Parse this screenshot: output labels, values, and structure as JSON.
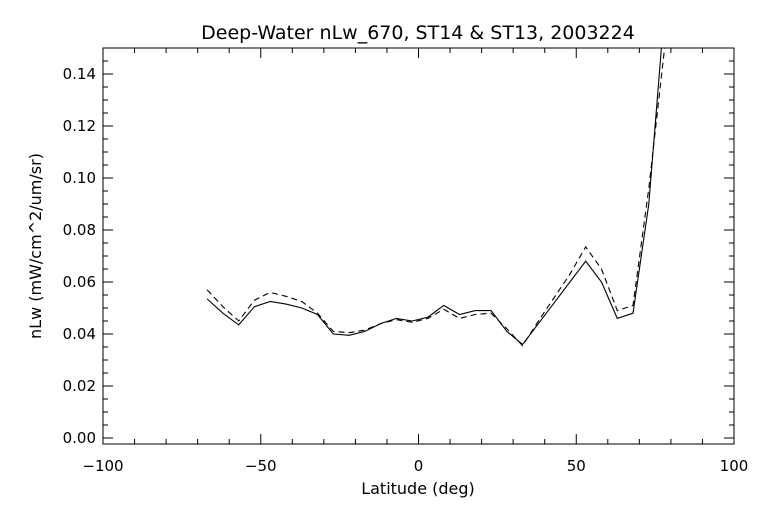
{
  "chart_data": {
    "type": "line",
    "title": "Deep-Water nLw_670, ST14 & ST13, 2003224",
    "xlabel": "Latitude (deg)",
    "ylabel": "nLw (mW/cm^2/um/sr)",
    "xlim": [
      -100,
      100
    ],
    "ylim": [
      0.0,
      0.15
    ],
    "x_ticks": [
      -100,
      -50,
      0,
      50,
      100
    ],
    "y_ticks": [
      0.0,
      0.02,
      0.04,
      0.06,
      0.08,
      0.1,
      0.12,
      0.14
    ],
    "x_tick_labels": [
      "−100",
      "−50",
      "0",
      "50",
      "100"
    ],
    "y_tick_labels": [
      "0.00",
      "0.02",
      "0.04",
      "0.06",
      "0.08",
      "0.10",
      "0.12",
      "0.14"
    ],
    "grid": false,
    "legend": "none",
    "series": [
      {
        "style": "solid",
        "points": [
          [
            -67,
            0.0535
          ],
          [
            -62,
            0.048
          ],
          [
            -57,
            0.0435
          ],
          [
            -52,
            0.0505
          ],
          [
            -47,
            0.0525
          ],
          [
            -42,
            0.0515
          ],
          [
            -37,
            0.05
          ],
          [
            -32,
            0.0475
          ],
          [
            -27,
            0.04
          ],
          [
            -22,
            0.0395
          ],
          [
            -17,
            0.041
          ],
          [
            -12,
            0.044
          ],
          [
            -7,
            0.046
          ],
          [
            -2,
            0.045
          ],
          [
            3,
            0.0465
          ],
          [
            8,
            0.051
          ],
          [
            13,
            0.0475
          ],
          [
            18,
            0.049
          ],
          [
            23,
            0.049
          ],
          [
            28,
            0.041
          ],
          [
            33,
            0.036
          ],
          [
            38,
            0.044
          ],
          [
            43,
            0.052
          ],
          [
            48,
            0.06
          ],
          [
            53,
            0.068
          ],
          [
            58,
            0.06
          ],
          [
            63,
            0.046
          ],
          [
            68,
            0.048
          ],
          [
            73,
            0.09
          ],
          [
            77,
            0.15
          ]
        ]
      },
      {
        "style": "dashed",
        "points": [
          [
            -67,
            0.057
          ],
          [
            -62,
            0.0505
          ],
          [
            -57,
            0.045
          ],
          [
            -52,
            0.053
          ],
          [
            -47,
            0.056
          ],
          [
            -42,
            0.0545
          ],
          [
            -37,
            0.0525
          ],
          [
            -32,
            0.048
          ],
          [
            -27,
            0.041
          ],
          [
            -22,
            0.0405
          ],
          [
            -17,
            0.0415
          ],
          [
            -12,
            0.044
          ],
          [
            -7,
            0.0455
          ],
          [
            -2,
            0.0445
          ],
          [
            3,
            0.046
          ],
          [
            8,
            0.0495
          ],
          [
            13,
            0.046
          ],
          [
            18,
            0.0475
          ],
          [
            23,
            0.048
          ],
          [
            28,
            0.042
          ],
          [
            33,
            0.0355
          ],
          [
            38,
            0.045
          ],
          [
            43,
            0.054
          ],
          [
            48,
            0.063
          ],
          [
            53,
            0.0735
          ],
          [
            58,
            0.065
          ],
          [
            63,
            0.049
          ],
          [
            68,
            0.051
          ],
          [
            73,
            0.096
          ],
          [
            78,
            0.15
          ]
        ]
      }
    ]
  }
}
